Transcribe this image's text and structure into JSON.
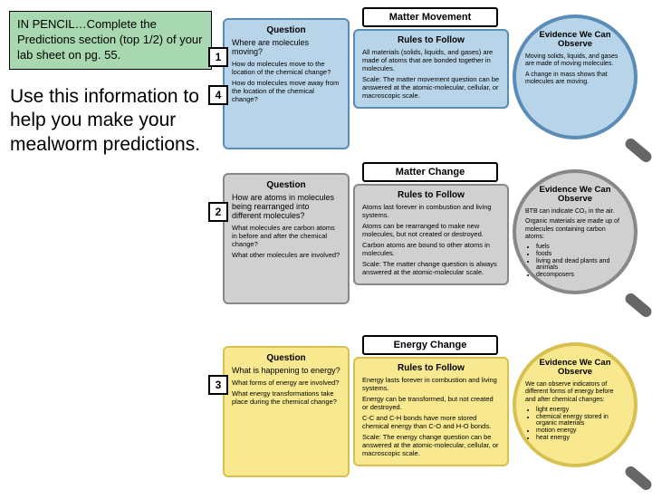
{
  "left": {
    "box1": "IN PENCIL…Complete the Predictions section (top 1/2) of your lab sheet on pg. 55.",
    "box2": "Use this information to help you make your mealworm predictions."
  },
  "rows": [
    {
      "color": "blue",
      "q_title": "Question",
      "q_main": "Where are molecules moving?",
      "q_subs": [
        "How do molecules move to the location of the chemical change?",
        "How do molecules move away from the location of the chemical change?"
      ],
      "nums": [
        "1",
        "4"
      ],
      "mid_title": "Matter Movement",
      "r_title": "Rules to Follow",
      "rules": [
        "All materials (solids, liquids, and gases) are made of atoms that are bonded together in molecules.",
        "Scale: The matter movement question can be answered at the atomic-molecular, cellular, or macroscopic scale."
      ],
      "e_title": "Evidence We Can Observe",
      "evidence": [
        "Moving solids, liquids, and gases are made of moving molecules.",
        "A change in mass shows that molecules are moving."
      ],
      "bullets": []
    },
    {
      "color": "gray",
      "q_title": "Question",
      "q_main": "How are atoms in molecules being rearranged into different molecules?",
      "q_subs": [
        "What molecules are carbon atoms in before and after the chemical change?",
        "What other molecules are involved?"
      ],
      "nums": [
        "2"
      ],
      "mid_title": "Matter Change",
      "r_title": "Rules to Follow",
      "rules": [
        "Atoms last forever in combustion and living systems.",
        "Atoms can be rearranged to make new molecules, but not created or destroyed.",
        "Carbon atoms are bound to other atoms in molecules.",
        "Scale: The matter change question is always answered at the atomic-molecular scale."
      ],
      "e_title": "Evidence We Can Observe",
      "evidence": [
        "BTB can indicate CO₂ in the air.",
        "Organic materials are made up of molecules containing carbon atoms:"
      ],
      "bullets": [
        "fuels",
        "foods",
        "living and dead plants and animals",
        "decomposers"
      ]
    },
    {
      "color": "yellow",
      "q_title": "Question",
      "q_main": "What is happening to energy?",
      "q_subs": [
        "What forms of energy are involved?",
        "What energy transformations take place during the chemical change?"
      ],
      "nums": [
        "3"
      ],
      "mid_title": "Energy Change",
      "r_title": "Rules to Follow",
      "rules": [
        "Energy lasts forever in combustion and living systems.",
        "Energy can be transformed, but not created or destroyed.",
        "C-C and C-H bonds have more stored chemical energy than C-O and H-O bonds.",
        "Scale: The energy change question can be answered at the atomic-molecular, cellular, or macroscopic scale."
      ],
      "e_title": "Evidence We Can Observe",
      "evidence": [
        "We can observe indicators of different forms of energy before and after chemical changes:"
      ],
      "bullets": [
        "light energy",
        "chemical energy stored in organic materials",
        "motion energy",
        "heat energy"
      ]
    }
  ]
}
